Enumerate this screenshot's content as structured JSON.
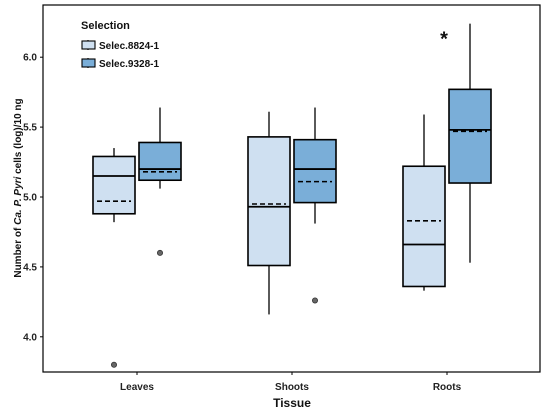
{
  "chart_data": {
    "type": "boxplot",
    "xlabel": "Tissue",
    "ylabel_parts": [
      "Number of ",
      "Ca. P. Pyri",
      " cells (log)/10 ng"
    ],
    "ylim": [
      3.7,
      6.3
    ],
    "yticks": [
      4.0,
      4.5,
      5.0,
      5.5,
      6.0
    ],
    "ytick_labels": [
      "4.0",
      "4.5",
      "5.0",
      "5.5",
      "6.0"
    ],
    "grid": false,
    "legend": {
      "title": "Selection",
      "position": "top-left"
    },
    "categories": [
      "Leaves",
      "Shoots",
      "Roots"
    ],
    "series": [
      {
        "name": "Selec.8824-1",
        "color": "#cfe0f1",
        "boxes": [
          {
            "whisker_low": 4.82,
            "q1": 4.88,
            "median": 5.15,
            "mean": 4.97,
            "q3": 5.29,
            "whisker_high": 5.35,
            "outliers": [
              3.8
            ]
          },
          {
            "whisker_low": 4.16,
            "q1": 4.51,
            "median": 4.93,
            "mean": 4.95,
            "q3": 5.43,
            "whisker_high": 5.61,
            "outliers": []
          },
          {
            "whisker_low": 4.33,
            "q1": 4.36,
            "median": 4.66,
            "mean": 4.83,
            "q3": 5.22,
            "whisker_high": 5.59,
            "outliers": []
          }
        ]
      },
      {
        "name": "Selec.9328-1",
        "color": "#7aaed8",
        "boxes": [
          {
            "whisker_low": 5.06,
            "q1": 5.12,
            "median": 5.2,
            "mean": 5.18,
            "q3": 5.39,
            "whisker_high": 5.64,
            "outliers": [
              4.6
            ]
          },
          {
            "whisker_low": 4.81,
            "q1": 4.96,
            "median": 5.2,
            "mean": 5.11,
            "q3": 5.41,
            "whisker_high": 5.64,
            "outliers": [
              4.26
            ]
          },
          {
            "whisker_low": 4.53,
            "q1": 5.1,
            "median": 5.48,
            "mean": 5.47,
            "q3": 5.77,
            "whisker_high": 6.24,
            "outliers": []
          }
        ]
      }
    ],
    "annotations": [
      {
        "text": "*",
        "category": "Roots",
        "series": "Selec.9328-1"
      }
    ]
  }
}
